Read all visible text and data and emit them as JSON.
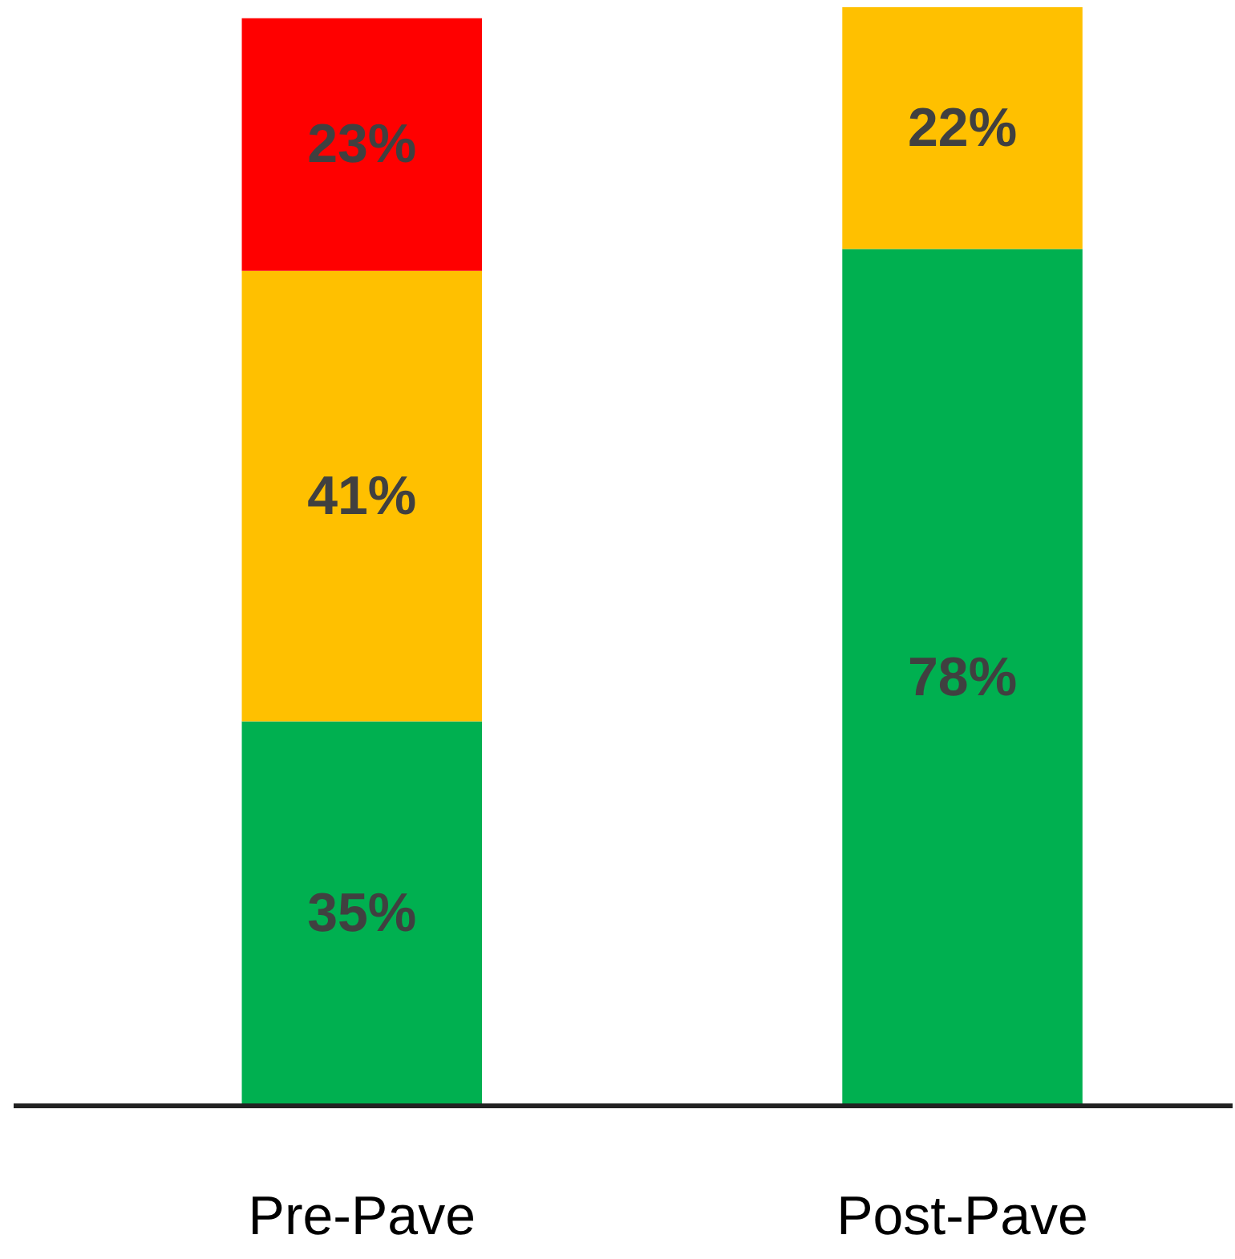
{
  "chart_data": {
    "type": "bar",
    "stacked": true,
    "categories": [
      "Pre-Pave",
      "Post-Pave"
    ],
    "series": [
      {
        "color": "#00b050",
        "values": [
          35,
          78
        ],
        "value_labels": [
          "35%",
          "78%"
        ]
      },
      {
        "color": "#ffc000",
        "values": [
          41,
          22
        ],
        "value_labels": [
          "41%",
          "22%"
        ]
      },
      {
        "color": "#ff0000",
        "values": [
          23,
          null
        ],
        "value_labels": [
          "23%",
          null
        ]
      }
    ],
    "tick_labels": "x"
  }
}
